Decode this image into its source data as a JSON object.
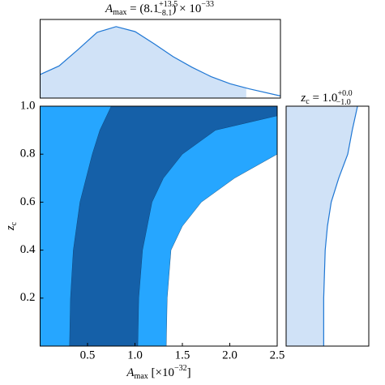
{
  "chart_data": [
    {
      "type": "contour",
      "xlabel": {
        "symbol": "A",
        "sub": "max",
        "text": " [×10",
        "exp": "−32",
        "tail": "]"
      },
      "ylabel": {
        "symbol": "z",
        "sub": "c"
      },
      "xlim": [
        0,
        2.5
      ],
      "ylim": [
        0,
        1
      ],
      "xticks": [
        0.5,
        {
          "value": 1,
          "label": "1.0"
        },
        1.5,
        {
          "value": 2,
          "label": "2.0"
        },
        2.5
      ],
      "yticks": [
        0.2,
        0.4,
        0.6,
        0.8,
        {
          "value": 1,
          "label": "1.0"
        }
      ],
      "regions": [
        {
          "color": "#26a6ff",
          "right": {
            "x": [
              1.33,
              1.34,
              1.38,
              1.5,
              1.7,
              2.05,
              2.5
            ],
            "y": [
              0,
              0.2,
              0.4,
              0.5,
              0.6,
              0.7,
              0.8
            ]
          }
        },
        {
          "color": "#1560a8",
          "left": {
            "x": [
              0.31,
              0.32,
              0.35,
              0.42,
              0.55,
              0.63,
              0.75
            ],
            "y": [
              0,
              0.2,
              0.4,
              0.6,
              0.8,
              0.9,
              1.0
            ]
          },
          "right": {
            "x": [
              1.03,
              1.04,
              1.08,
              1.18,
              1.3,
              1.5,
              1.85,
              2.5
            ],
            "y": [
              0,
              0.2,
              0.4,
              0.6,
              0.7,
              0.8,
              0.9,
              0.96
            ]
          }
        }
      ]
    },
    {
      "type": "density",
      "title": {
        "symbol": "A",
        "sub": "max",
        "text": " = (8.1",
        "upper": "+13.5",
        "lower": "−8.1",
        "tail": ") × 10",
        "exp": "−33"
      },
      "xlim": [
        0,
        2.53
      ],
      "ylim": [
        0,
        1.1
      ],
      "color": "#1f77d4",
      "fill": "#d0e2f7",
      "fill_range": [
        0,
        2.17
      ],
      "x": [
        0,
        0.2,
        0.4,
        0.6,
        0.8,
        1.0,
        1.2,
        1.4,
        1.6,
        1.8,
        2.0,
        2.2,
        2.53
      ],
      "values": [
        0.33,
        0.45,
        0.68,
        0.92,
        1.0,
        0.93,
        0.76,
        0.58,
        0.43,
        0.3,
        0.2,
        0.13,
        0.03
      ]
    },
    {
      "type": "density-h",
      "title": {
        "symbol": "z",
        "sub": "c",
        "text": " = 1.0",
        "upper": "+0.0",
        "lower": "−1.0"
      },
      "xlim": [
        0,
        1.1
      ],
      "ylim": [
        0,
        1
      ],
      "color": "#1f77d4",
      "fill": "#d0e2f7",
      "y": [
        0,
        0.2,
        0.4,
        0.5,
        0.6,
        0.7,
        0.8,
        0.9,
        1.0
      ],
      "values": [
        0.5,
        0.5,
        0.52,
        0.55,
        0.6,
        0.7,
        0.82,
        0.88,
        0.95
      ]
    }
  ]
}
